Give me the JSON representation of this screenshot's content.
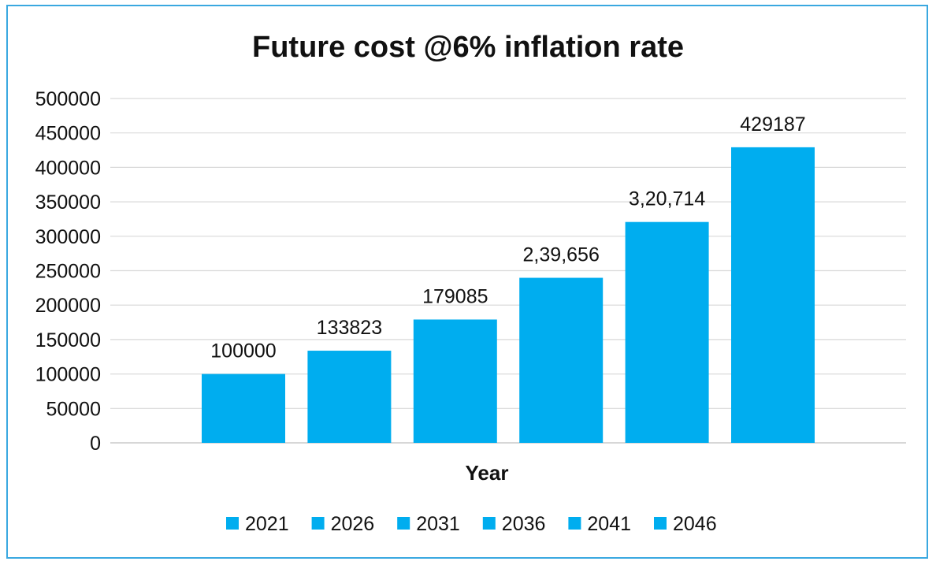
{
  "chart_data": {
    "type": "bar",
    "title": "Future cost @6% inflation rate",
    "xlabel": "Year",
    "ylabel": "",
    "ylim": [
      0,
      500000
    ],
    "yticks": [
      "0",
      "50000",
      "100000",
      "150000",
      "200000",
      "250000",
      "300000",
      "350000",
      "400000",
      "450000",
      "500000"
    ],
    "grid": true,
    "legend_placement": "bottom",
    "bar_color": "#00adef",
    "series": [
      {
        "name": "2021",
        "value": 100000,
        "label": "100000"
      },
      {
        "name": "2026",
        "value": 133823,
        "label": "133823"
      },
      {
        "name": "2031",
        "value": 179085,
        "label": "179085"
      },
      {
        "name": "2036",
        "value": 239656,
        "label": "2,39,656"
      },
      {
        "name": "2041",
        "value": 320714,
        "label": "3,20,714"
      },
      {
        "name": "2046",
        "value": 429187,
        "label": "429187"
      }
    ]
  }
}
